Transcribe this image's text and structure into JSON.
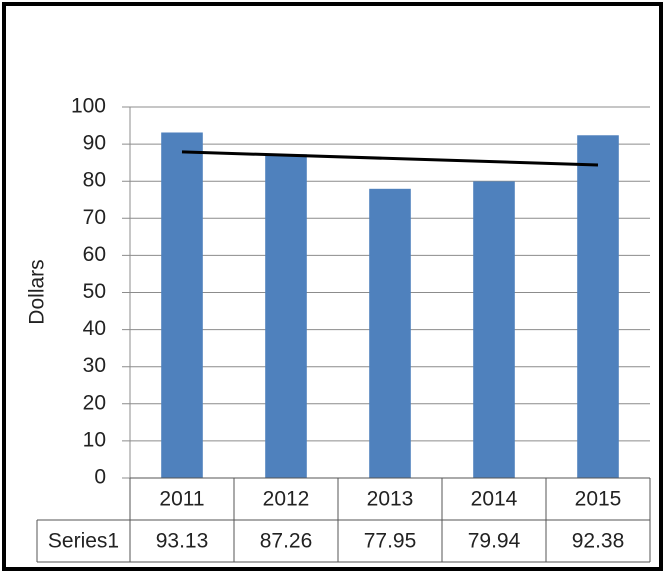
{
  "chart_data": {
    "type": "bar",
    "y_label": "Dollars",
    "categories": [
      "2011",
      "2012",
      "2013",
      "2014",
      "2015"
    ],
    "series": [
      {
        "name": "Series1",
        "color": "#4f81bd",
        "values": [
          93.13,
          87.26,
          77.95,
          79.94,
          92.38
        ]
      }
    ],
    "trendline": {
      "values": [
        87.9,
        84.37
      ],
      "color": "#000000"
    },
    "ylim": [
      0,
      100
    ],
    "yticks": [
      0,
      10,
      20,
      30,
      40,
      50,
      60,
      70,
      80,
      90,
      100
    ],
    "grid": true
  }
}
